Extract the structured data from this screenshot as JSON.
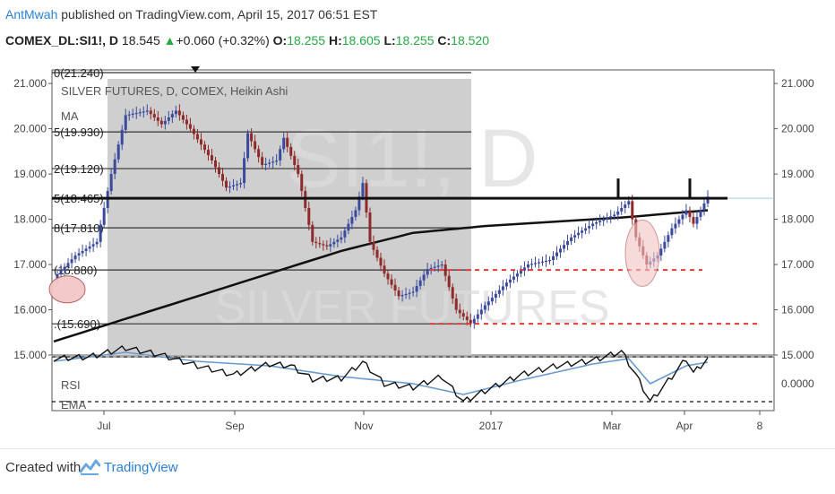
{
  "header": {
    "author": "AntMwah",
    "published_text": "published on TradingView.com, April 15, 2017 06:51 EST",
    "symbol": "COMEX_DL:SI1!",
    "interval": ", D",
    "last": "18.545",
    "change": "+0.060 (+0.32%)",
    "open_label": "O:",
    "open": "18.255",
    "high_label": "H:",
    "high": "18.605",
    "low_label": "L:",
    "low": "18.255",
    "close_label": "C:",
    "close": "18.520"
  },
  "watermark": {
    "symbol": "SI1!, D",
    "name": "SILVER FUTURES"
  },
  "legend": {
    "title": "SILVER FUTURES, D, COMEX, Heikin Ashi",
    "ma": "MA",
    "rsi": "RSI",
    "ema": "EMA"
  },
  "footer": {
    "created_with": "Created with",
    "brand": "TradingView"
  },
  "colors": {
    "bull": "#3a4a9c",
    "bear": "#8e2a2a",
    "fib_box": "#cfcfcf",
    "support": "#e53935",
    "highlight": "#f3c4c4",
    "rsi": "#6a9bd0"
  },
  "chart_data": {
    "type": "candlestick",
    "title": "SILVER FUTURES, D, COMEX, Heikin Ashi",
    "x_ticks": [
      "Jul",
      "Sep",
      "Nov",
      "2017",
      "Mar",
      "Apr",
      "8"
    ],
    "y_ticks": [
      "21.000",
      "20.000",
      "19.000",
      "18.000",
      "17.000",
      "16.000",
      "15.000"
    ],
    "ylim": [
      15.0,
      21.3
    ],
    "fib_levels": [
      {
        "label": "0(21.240)",
        "value": 21.24
      },
      {
        "label": "5(19.930)",
        "value": 19.93
      },
      {
        "label": "2(19.120)",
        "value": 19.12
      },
      {
        "label": "5(18.465)",
        "value": 18.465
      },
      {
        "label": "8(17.810)",
        "value": 17.81
      },
      {
        "label": "(16.880)",
        "value": 16.88
      },
      {
        "label": ".(15.690)",
        "value": 15.69
      }
    ],
    "resistance": 18.465,
    "support_levels": [
      16.88,
      15.69
    ],
    "price_path": [
      [
        0,
        16.7
      ],
      [
        6,
        17.2
      ],
      [
        12,
        17.5
      ],
      [
        16,
        19.0
      ],
      [
        20,
        20.3
      ],
      [
        26,
        20.4
      ],
      [
        30,
        20.1
      ],
      [
        34,
        20.4
      ],
      [
        38,
        20.0
      ],
      [
        44,
        19.3
      ],
      [
        48,
        18.7
      ],
      [
        52,
        18.8
      ],
      [
        54,
        19.9
      ],
      [
        58,
        19.2
      ],
      [
        62,
        19.3
      ],
      [
        64,
        19.8
      ],
      [
        68,
        19.0
      ],
      [
        72,
        17.5
      ],
      [
        76,
        17.4
      ],
      [
        80,
        17.6
      ],
      [
        84,
        18.2
      ],
      [
        86,
        18.8
      ],
      [
        88,
        17.5
      ],
      [
        92,
        16.8
      ],
      [
        96,
        16.3
      ],
      [
        100,
        16.4
      ],
      [
        104,
        16.9
      ],
      [
        108,
        17.0
      ],
      [
        112,
        16.0
      ],
      [
        116,
        15.7
      ],
      [
        120,
        16.1
      ],
      [
        126,
        16.6
      ],
      [
        132,
        17.0
      ],
      [
        138,
        17.1
      ],
      [
        144,
        17.6
      ],
      [
        150,
        17.9
      ],
      [
        156,
        18.1
      ],
      [
        160,
        18.4
      ],
      [
        162,
        17.6
      ],
      [
        165,
        17.0
      ],
      [
        168,
        17.2
      ],
      [
        172,
        17.8
      ],
      [
        176,
        18.2
      ],
      [
        178,
        17.9
      ],
      [
        182,
        18.5
      ]
    ],
    "ma_path": [
      [
        0,
        15.3
      ],
      [
        20,
        15.8
      ],
      [
        40,
        16.3
      ],
      [
        60,
        16.8
      ],
      [
        80,
        17.3
      ],
      [
        100,
        17.7
      ],
      [
        120,
        17.85
      ],
      [
        140,
        17.95
      ],
      [
        160,
        18.05
      ],
      [
        182,
        18.2
      ]
    ],
    "rsi_ticks": [
      "0.0000"
    ],
    "rsi_bands": [
      0.03,
      -0.02
    ],
    "rsi_path": [
      [
        0,
        0.028
      ],
      [
        10,
        0.03
      ],
      [
        20,
        0.04
      ],
      [
        30,
        0.032
      ],
      [
        40,
        0.02
      ],
      [
        50,
        0.01
      ],
      [
        60,
        0.022
      ],
      [
        66,
        0.02
      ],
      [
        72,
        0.005
      ],
      [
        80,
        0.006
      ],
      [
        86,
        0.024
      ],
      [
        92,
        0.0
      ],
      [
        100,
        -0.004
      ],
      [
        108,
        0.008
      ],
      [
        114,
        -0.02
      ],
      [
        120,
        -0.008
      ],
      [
        130,
        0.01
      ],
      [
        140,
        0.02
      ],
      [
        150,
        0.026
      ],
      [
        158,
        0.036
      ],
      [
        162,
        0.01
      ],
      [
        166,
        -0.02
      ],
      [
        172,
        0.008
      ],
      [
        176,
        0.028
      ],
      [
        178,
        0.012
      ],
      [
        182,
        0.028
      ]
    ],
    "rsi_ema_path": [
      [
        0,
        0.025
      ],
      [
        20,
        0.035
      ],
      [
        40,
        0.025
      ],
      [
        60,
        0.02
      ],
      [
        80,
        0.008
      ],
      [
        100,
        0.0
      ],
      [
        114,
        -0.012
      ],
      [
        130,
        0.004
      ],
      [
        150,
        0.022
      ],
      [
        160,
        0.028
      ],
      [
        166,
        0.0
      ],
      [
        176,
        0.02
      ],
      [
        182,
        0.024
      ]
    ]
  }
}
